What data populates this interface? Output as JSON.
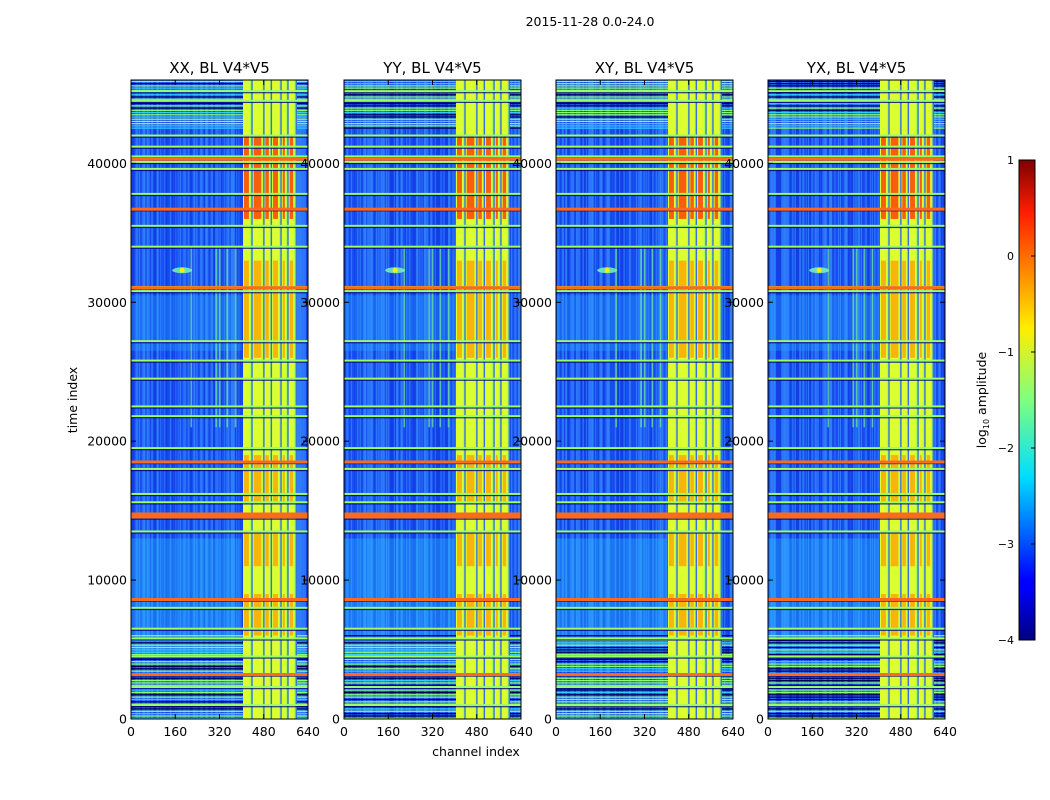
{
  "figure_title": "2015-11-28 0.0-24.0",
  "chart_data": {
    "type": "heatmap",
    "title": "2015-11-28 0.0-24.0",
    "xlabel": "channel index",
    "ylabel": "time index",
    "xlim": [
      0,
      640
    ],
    "ylim": [
      0,
      46000
    ],
    "x_ticks": [
      "0",
      "160",
      "320",
      "480",
      "640"
    ],
    "x_tick_values": [
      0,
      160,
      320,
      480,
      640
    ],
    "y_ticks": [
      "0",
      "10000",
      "20000",
      "30000",
      "40000"
    ],
    "y_tick_values": [
      0,
      10000,
      20000,
      30000,
      40000
    ],
    "panels": [
      {
        "title": "XX, BL V4*V5",
        "polarization": "XX",
        "bright_band_channels": [
          405,
          600
        ]
      },
      {
        "title": "YY, BL V4*V5",
        "polarization": "YY",
        "bright_band_channels": [
          405,
          600
        ]
      },
      {
        "title": "XY, BL V4*V5",
        "polarization": "XY",
        "bright_band_channels": [
          405,
          600
        ]
      },
      {
        "title": "YX, BL V4*V5",
        "polarization": "YX",
        "bright_band_channels": [
          405,
          600
        ]
      }
    ],
    "colorbar": {
      "label": "log10 amplitude",
      "label_main": "log",
      "label_sub": "10",
      "label_tail": " amplitude",
      "min": -4,
      "max": 1,
      "ticks": [
        "−4",
        "−3",
        "−2",
        "−1",
        "0",
        "1"
      ],
      "tick_values": [
        -4,
        -3,
        -2,
        -1,
        0,
        1
      ],
      "colormap": "jet"
    },
    "rfi_time_rows": [
      1000,
      2300,
      3200,
      4500,
      5800,
      6500,
      8000,
      8600,
      13500,
      14500,
      14700,
      15600,
      16200,
      18000,
      18500,
      19500,
      21800,
      22500,
      24500,
      25800,
      27200,
      30800,
      31100,
      34000,
      35500,
      36700,
      37800,
      39600,
      40100,
      40500,
      41200,
      42000,
      44500,
      45200
    ],
    "strong_time_rows": [
      3200,
      8600,
      14650,
      18500,
      31050,
      36700,
      40300
    ],
    "hot_channel_blocks": [
      [
        405,
        430
      ],
      [
        440,
        475
      ],
      [
        482,
        502
      ],
      [
        510,
        535
      ],
      [
        545,
        560
      ],
      [
        570,
        590
      ]
    ],
    "hot_time_ranges": [
      [
        6000,
        9000
      ],
      [
        11000,
        13500
      ],
      [
        15500,
        19000
      ],
      [
        26000,
        33000
      ],
      [
        36000,
        42000
      ]
    ],
    "point_sources": [
      {
        "channel": 185,
        "time": 32300
      }
    ]
  }
}
